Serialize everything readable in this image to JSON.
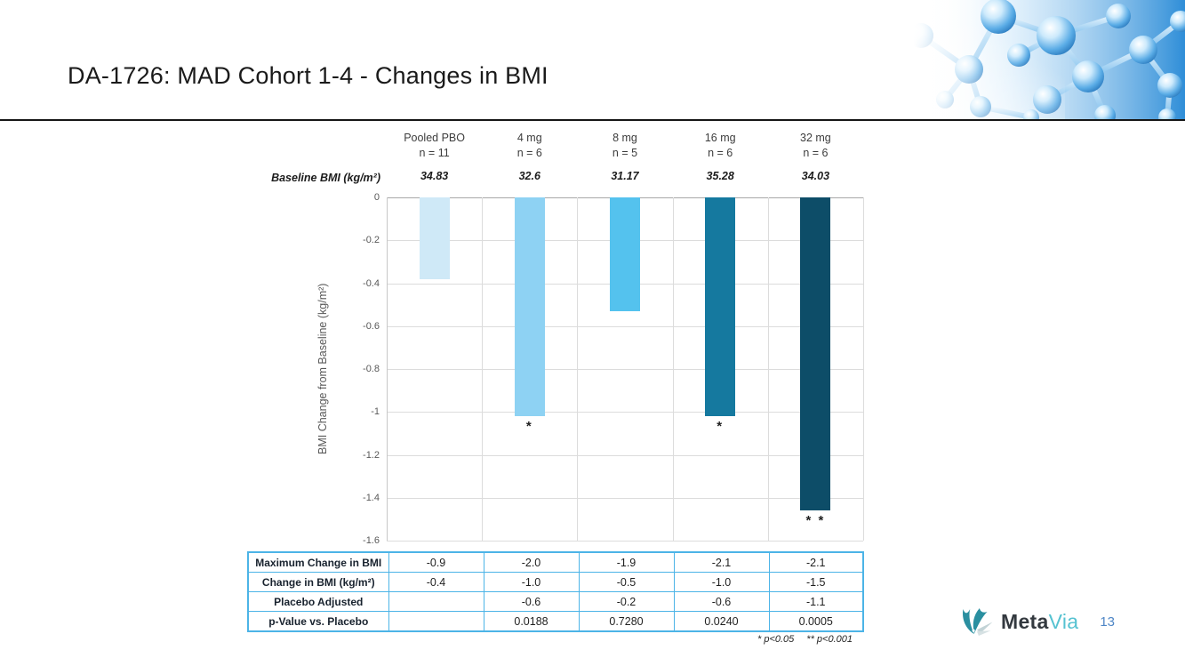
{
  "slide": {
    "title": "DA-1726: MAD Cohort 1-4 - Changes in BMI",
    "page_number": "13",
    "logo": {
      "icon": "metavia-bird-icon",
      "text_primary": "Meta",
      "text_secondary": "Via"
    },
    "footnote": {
      "star1": "* p<0.05",
      "star2": "** p<0.001"
    },
    "decoration": "molecule-3d-graphic"
  },
  "chart_data": {
    "type": "bar",
    "title": "DA-1726: MAD Cohort 1-4 - Changes in BMI",
    "xlabel": "",
    "ylabel": "BMI Change from Baseline (kg/m²)",
    "ylim": [
      -1.6,
      0
    ],
    "yticks": [
      "0",
      "-0.2",
      "-0.4",
      "-0.6",
      "-0.8",
      "-1",
      "-1.2",
      "-1.4",
      "-1.6"
    ],
    "grid": true,
    "legend": "none",
    "baseline_row_label": "Baseline BMI (kg/m²)",
    "categories": [
      {
        "dose": "Pooled PBO",
        "n": "n = 11",
        "baseline_bmi": "34.83",
        "value": -0.38,
        "color": "#cfe9f7",
        "annotation": ""
      },
      {
        "dose": "4 mg",
        "n": "n = 6",
        "baseline_bmi": "32.6",
        "value": -1.02,
        "color": "#8ed2f3",
        "annotation": "*"
      },
      {
        "dose": "8 mg",
        "n": "n = 5",
        "baseline_bmi": "31.17",
        "value": -0.53,
        "color": "#54c2ee",
        "annotation": ""
      },
      {
        "dose": "16 mg",
        "n": "n = 6",
        "baseline_bmi": "35.28",
        "value": -1.02,
        "color": "#15799f",
        "annotation": "*"
      },
      {
        "dose": "32 mg",
        "n": "n = 6",
        "baseline_bmi": "34.03",
        "value": -1.46,
        "color": "#0d4d68",
        "annotation": "* *"
      }
    ]
  },
  "table": {
    "border_color": "#4cb4e7",
    "rows": [
      {
        "label": "Maximum Change in BMI",
        "values": [
          "-0.9",
          "-2.0",
          "-1.9",
          "-2.1",
          "-2.1"
        ]
      },
      {
        "label": "Change in BMI (kg/m²)",
        "values": [
          "-0.4",
          "-1.0",
          "-0.5",
          "-1.0",
          "-1.5"
        ]
      },
      {
        "label": "Placebo Adjusted",
        "values": [
          "",
          "-0.6",
          "-0.2",
          "-0.6",
          "-1.1"
        ]
      },
      {
        "label": "p-Value vs. Placebo",
        "values": [
          "",
          "0.0188",
          "0.7280",
          "0.0240",
          "0.0005"
        ]
      }
    ]
  }
}
